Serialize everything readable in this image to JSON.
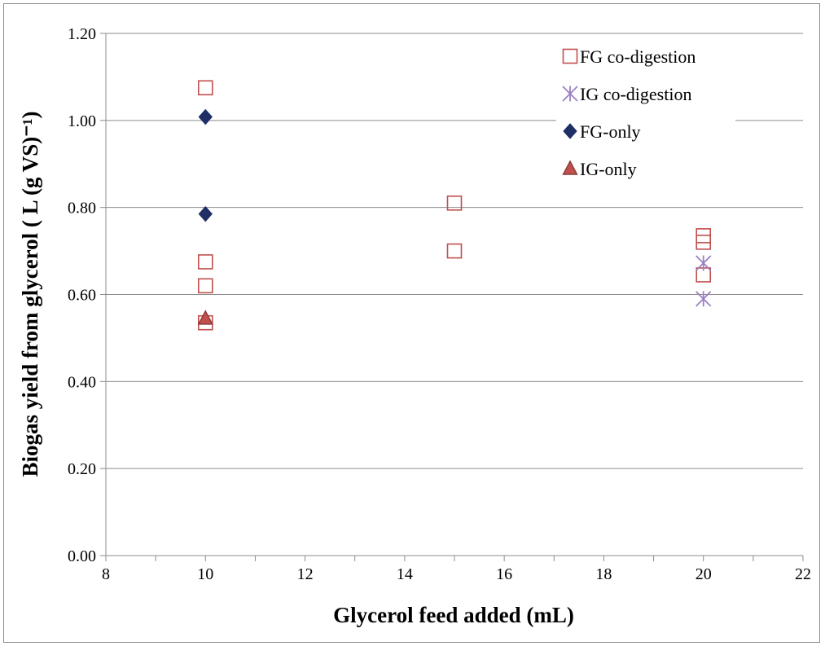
{
  "chart_data": {
    "type": "scatter",
    "title": "",
    "xlabel": "Glycerol feed added (mL)",
    "ylabel": "Biogas  yield  from glycerol ( L (g VS)⁻¹)",
    "xlim": [
      8,
      22
    ],
    "ylim": [
      0,
      1.2
    ],
    "x_ticks": [
      8,
      10,
      12,
      14,
      16,
      18,
      20,
      22
    ],
    "y_ticks": [
      "0.00",
      "0.20",
      "0.40",
      "0.60",
      "0.80",
      "1.00",
      "1.20"
    ],
    "y_tick_values": [
      0,
      0.2,
      0.4,
      0.6,
      0.8,
      1.0,
      1.2
    ],
    "grid": "horizontal",
    "legend_position": "top-right",
    "series": [
      {
        "name": "FG co-digestion",
        "marker": "open-square",
        "color": "#c0504d",
        "points": [
          {
            "x": 10,
            "y": 1.075
          },
          {
            "x": 10,
            "y": 0.675
          },
          {
            "x": 10,
            "y": 0.62
          },
          {
            "x": 10,
            "y": 0.535
          },
          {
            "x": 15,
            "y": 0.81
          },
          {
            "x": 15,
            "y": 0.7
          },
          {
            "x": 20,
            "y": 0.735
          },
          {
            "x": 20,
            "y": 0.72
          },
          {
            "x": 20,
            "y": 0.645
          }
        ]
      },
      {
        "name": "IG co-digestion",
        "marker": "asterisk",
        "color": "#9b7fc4",
        "points": [
          {
            "x": 20,
            "y": 0.672
          },
          {
            "x": 20,
            "y": 0.59
          }
        ]
      },
      {
        "name": "FG-only",
        "marker": "filled-diamond",
        "color": "#1f2f66",
        "points": [
          {
            "x": 10,
            "y": 1.008
          },
          {
            "x": 10,
            "y": 0.785
          }
        ]
      },
      {
        "name": "IG-only",
        "marker": "filled-triangle",
        "color": "#c0504d",
        "stroke": "#8b3a3a",
        "points": [
          {
            "x": 10,
            "y": 0.545
          }
        ]
      }
    ]
  }
}
